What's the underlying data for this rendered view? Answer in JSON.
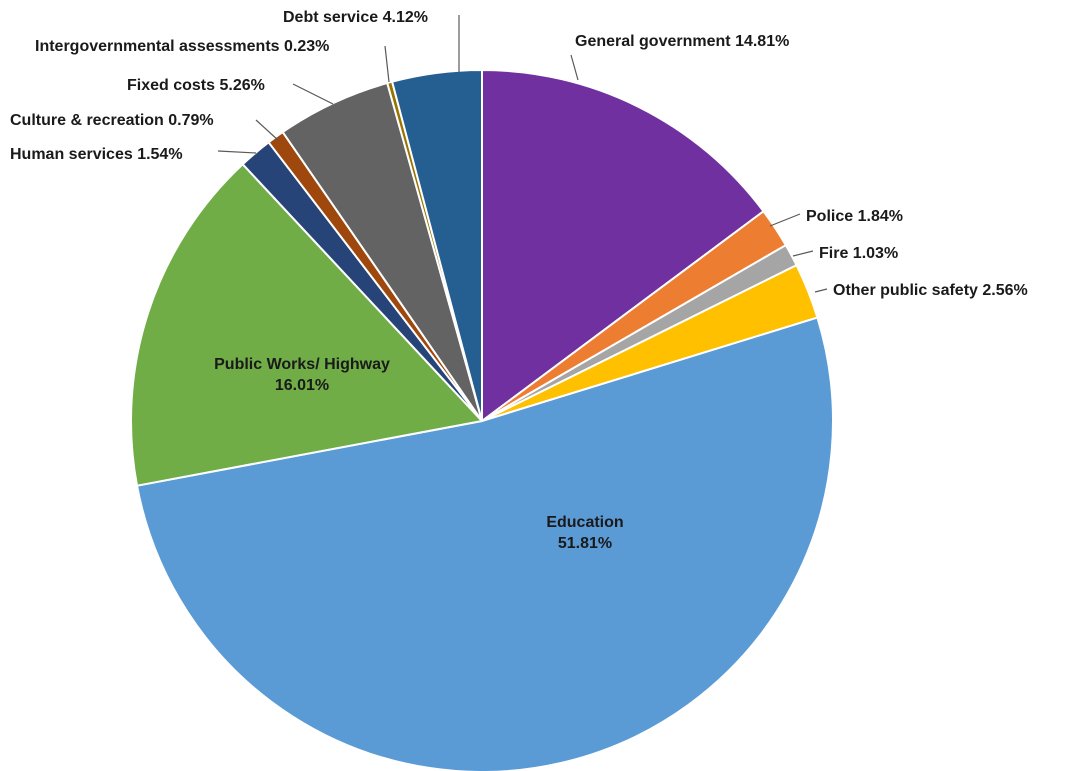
{
  "chart_data": {
    "type": "pie",
    "title": "",
    "slices": [
      {
        "label": "General government",
        "value": 14.81,
        "display": "14.81%",
        "color": "#7030A0"
      },
      {
        "label": "Police",
        "value": 1.84,
        "display": "1.84%",
        "color": "#ED7D31"
      },
      {
        "label": "Fire",
        "value": 1.03,
        "display": "1.03%",
        "color": "#A5A5A5"
      },
      {
        "label": "Other public safety",
        "value": 2.56,
        "display": "2.56%",
        "color": "#FFC000"
      },
      {
        "label": "Education",
        "value": 51.81,
        "display": "51.81%",
        "color": "#5B9BD5"
      },
      {
        "label": "Public Works/ Highway",
        "value": 16.01,
        "display": "16.01%",
        "color": "#70AD47"
      },
      {
        "label": "Human services",
        "value": 1.54,
        "display": "1.54%",
        "color": "#264478"
      },
      {
        "label": "Culture & recreation",
        "value": 0.79,
        "display": "0.79%",
        "color": "#9E480E"
      },
      {
        "label": "Fixed costs",
        "value": 5.26,
        "display": "5.26%",
        "color": "#636363"
      },
      {
        "label": "Intergovernmental assessments",
        "value": 0.23,
        "display": "0.23%",
        "color": "#997300"
      },
      {
        "label": "Debt service",
        "value": 4.12,
        "display": "4.12%",
        "color": "#255E91"
      }
    ]
  }
}
